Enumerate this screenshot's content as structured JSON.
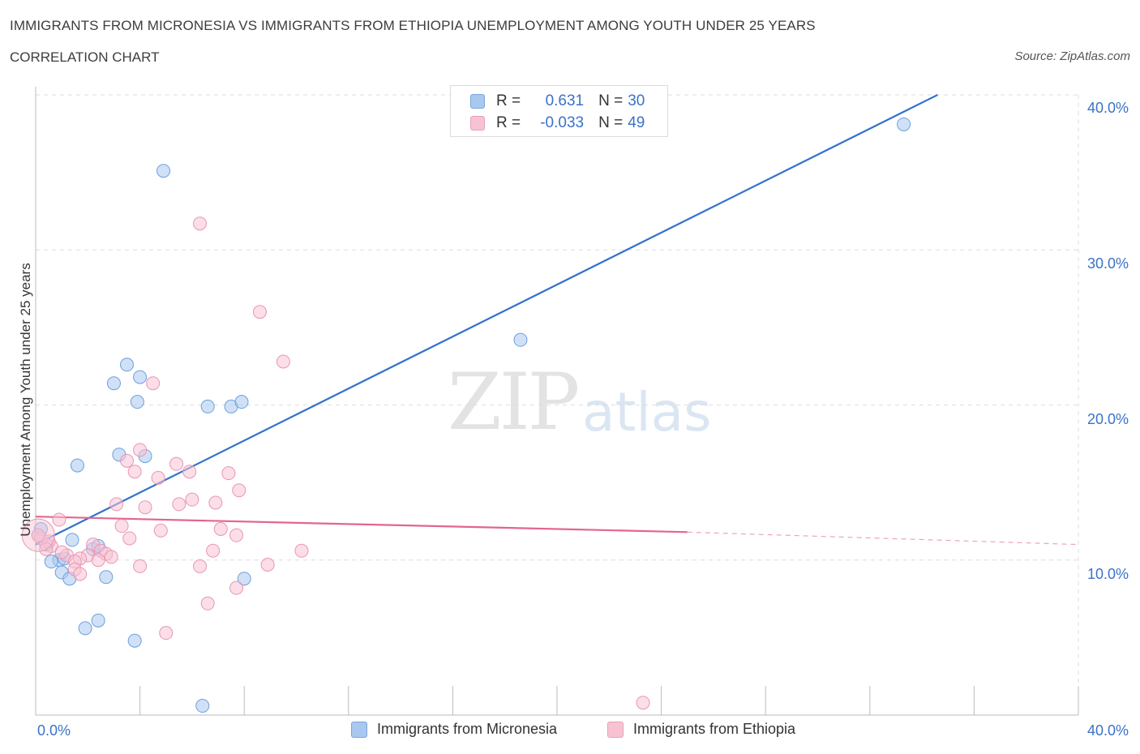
{
  "header": {
    "title": "IMMIGRANTS FROM MICRONESIA VS IMMIGRANTS FROM ETHIOPIA UNEMPLOYMENT AMONG YOUTH UNDER 25 YEARS",
    "subtitle": "CORRELATION CHART",
    "source": "Source: ZipAtlas.com"
  },
  "watermark": {
    "zip": "ZIP",
    "atlas": "atlas"
  },
  "legend": {
    "rows": [
      {
        "r_label": "R =",
        "r_value": "0.631",
        "n_label": "N =",
        "n_value": "30",
        "color": "#a9c8f0",
        "border": "#7aa6dd"
      },
      {
        "r_label": "R =",
        "r_value": "-0.033",
        "n_label": "N =",
        "n_value": "49",
        "color": "#f7c3d3",
        "border": "#eaa0b8"
      }
    ]
  },
  "bottom_legend": {
    "micronesia": "Immigrants from Micronesia",
    "ethiopia": "Immigrants from Ethiopia"
  },
  "axes": {
    "ylabel": "Unemployment Among Youth under 25 years",
    "y_ticks": [
      "40.0%",
      "30.0%",
      "20.0%",
      "10.0%"
    ],
    "x_ticks": [
      "0.0%",
      "40.0%"
    ]
  },
  "colors": {
    "micronesia_fill": "#a9c8f0",
    "micronesia_stroke": "#6d9fdc",
    "micronesia_line": "#2f72d0",
    "ethiopia_fill": "#f7c3d3",
    "ethiopia_stroke": "#e896b2",
    "ethiopia_line": "#e2668f",
    "grid": "#dddddd",
    "axis_text": "#3a72c8"
  },
  "chart_data": {
    "type": "scatter",
    "xlabel": "",
    "ylabel": "Unemployment Among Youth under 25 years",
    "xlim": [
      0,
      40
    ],
    "ylim": [
      0,
      40
    ],
    "grid": true,
    "legend_position": "top-center",
    "series": [
      {
        "name": "Immigrants from Micronesia",
        "points": [
          [
            4.9,
            35.1
          ],
          [
            33.3,
            38.1
          ],
          [
            18.6,
            24.2
          ],
          [
            3.5,
            22.6
          ],
          [
            3.0,
            21.4
          ],
          [
            4.0,
            21.8
          ],
          [
            3.9,
            20.2
          ],
          [
            6.6,
            19.9
          ],
          [
            7.5,
            19.9
          ],
          [
            7.9,
            20.2
          ],
          [
            3.2,
            16.8
          ],
          [
            4.2,
            16.7
          ],
          [
            1.6,
            16.1
          ],
          [
            0.4,
            11.0
          ],
          [
            1.4,
            11.3
          ],
          [
            2.2,
            10.7
          ],
          [
            2.4,
            10.9
          ],
          [
            0.9,
            10.0
          ],
          [
            0.6,
            9.9
          ],
          [
            1.1,
            10.1
          ],
          [
            1.0,
            9.2
          ],
          [
            1.3,
            8.8
          ],
          [
            2.7,
            8.9
          ],
          [
            8.0,
            8.8
          ],
          [
            2.4,
            6.1
          ],
          [
            1.9,
            5.6
          ],
          [
            3.8,
            4.8
          ],
          [
            6.4,
            0.6
          ],
          [
            0.1,
            11.6
          ],
          [
            0.2,
            12.0
          ]
        ],
        "trendline": {
          "x": [
            0.0,
            34.6
          ],
          "y": [
            11.0,
            40.0
          ]
        }
      },
      {
        "name": "Immigrants from Ethiopia",
        "points": [
          [
            6.3,
            31.7
          ],
          [
            8.6,
            26.0
          ],
          [
            9.5,
            22.8
          ],
          [
            4.5,
            21.4
          ],
          [
            4.0,
            17.1
          ],
          [
            3.5,
            16.4
          ],
          [
            5.4,
            16.2
          ],
          [
            3.8,
            15.7
          ],
          [
            5.9,
            15.7
          ],
          [
            7.4,
            15.6
          ],
          [
            4.7,
            15.3
          ],
          [
            7.8,
            14.5
          ],
          [
            6.0,
            13.9
          ],
          [
            6.9,
            13.7
          ],
          [
            5.5,
            13.6
          ],
          [
            3.1,
            13.6
          ],
          [
            4.2,
            13.4
          ],
          [
            0.9,
            12.6
          ],
          [
            3.3,
            12.2
          ],
          [
            7.1,
            12.0
          ],
          [
            4.8,
            11.9
          ],
          [
            7.7,
            11.6
          ],
          [
            3.6,
            11.4
          ],
          [
            0.2,
            11.4
          ],
          [
            2.2,
            11.0
          ],
          [
            0.6,
            10.9
          ],
          [
            10.2,
            10.6
          ],
          [
            6.8,
            10.6
          ],
          [
            2.5,
            10.6
          ],
          [
            2.7,
            10.4
          ],
          [
            1.2,
            10.3
          ],
          [
            2.0,
            10.3
          ],
          [
            2.9,
            10.2
          ],
          [
            1.7,
            10.1
          ],
          [
            2.4,
            10.0
          ],
          [
            1.5,
            9.9
          ],
          [
            8.9,
            9.7
          ],
          [
            4.0,
            9.6
          ],
          [
            6.3,
            9.6
          ],
          [
            1.5,
            9.4
          ],
          [
            1.7,
            9.1
          ],
          [
            7.7,
            8.2
          ],
          [
            6.6,
            7.2
          ],
          [
            5.0,
            5.3
          ],
          [
            0.5,
            11.2
          ],
          [
            0.1,
            11.6
          ],
          [
            0.4,
            10.7
          ],
          [
            1.0,
            10.5
          ],
          [
            23.3,
            0.8
          ]
        ],
        "trendline": {
          "x": [
            0.0,
            25.0
          ],
          "y": [
            12.8,
            11.8
          ]
        },
        "trendline_extension": {
          "x": [
            25.0,
            40.0
          ],
          "y": [
            11.8,
            11.0
          ]
        }
      }
    ]
  }
}
